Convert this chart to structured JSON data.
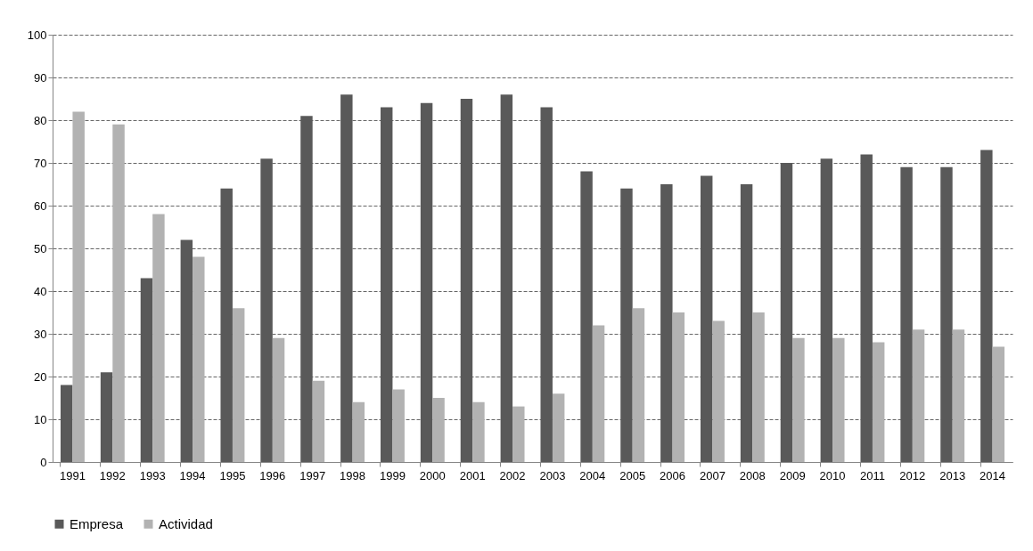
{
  "chart_data": {
    "type": "bar",
    "categories": [
      "1991",
      "1992",
      "1993",
      "1994",
      "1995",
      "1996",
      "1997",
      "1998",
      "1999",
      "2000",
      "2001",
      "2002",
      "2003",
      "2004",
      "2005",
      "2006",
      "2007",
      "2008",
      "2009",
      "2010",
      "2011",
      "2012",
      "2013",
      "2014"
    ],
    "series": [
      {
        "name": "Empresa",
        "color": "#595959",
        "values": [
          18,
          21,
          43,
          52,
          64,
          71,
          81,
          86,
          83,
          84,
          85,
          86,
          83,
          68,
          64,
          65,
          67,
          65,
          70,
          71,
          72,
          69,
          69,
          73
        ]
      },
      {
        "name": "Actividad",
        "color": "#b2b2b2",
        "values": [
          82,
          79,
          58,
          48,
          36,
          29,
          19,
          14,
          17,
          15,
          14,
          13,
          16,
          32,
          36,
          35,
          33,
          35,
          29,
          29,
          28,
          31,
          31,
          27
        ]
      }
    ],
    "ylim": [
      0,
      100
    ],
    "yticks": [
      0,
      10,
      20,
      30,
      40,
      50,
      60,
      70,
      80,
      90,
      100
    ],
    "grid": "y",
    "legend": "bottom"
  }
}
